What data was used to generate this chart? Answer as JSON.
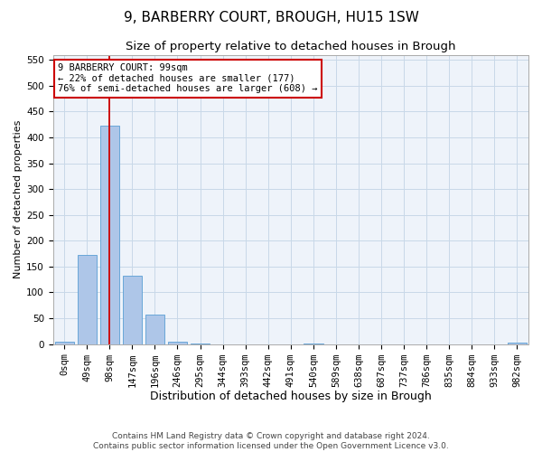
{
  "title1": "9, BARBERRY COURT, BROUGH, HU15 1SW",
  "title2": "Size of property relative to detached houses in Brough",
  "xlabel": "Distribution of detached houses by size in Brough",
  "ylabel": "Number of detached properties",
  "bar_labels": [
    "0sqm",
    "49sqm",
    "98sqm",
    "147sqm",
    "196sqm",
    "246sqm",
    "295sqm",
    "344sqm",
    "393sqm",
    "442sqm",
    "491sqm",
    "540sqm",
    "589sqm",
    "638sqm",
    "687sqm",
    "737sqm",
    "786sqm",
    "835sqm",
    "884sqm",
    "933sqm",
    "982sqm"
  ],
  "bar_values": [
    5,
    173,
    422,
    132,
    57,
    5,
    1,
    0,
    0,
    0,
    0,
    1,
    0,
    0,
    0,
    0,
    0,
    0,
    0,
    0,
    2
  ],
  "bar_color": "#aec6e8",
  "bar_edge_color": "#5a9fd4",
  "grid_color": "#c8d8e8",
  "property_line_x": 2,
  "annotation_text": "9 BARBERRY COURT: 99sqm\n← 22% of detached houses are smaller (177)\n76% of semi-detached houses are larger (608) →",
  "annotation_box_color": "#ffffff",
  "annotation_box_edge": "#cc0000",
  "vline_color": "#cc0000",
  "ylim": [
    0,
    560
  ],
  "yticks": [
    0,
    50,
    100,
    150,
    200,
    250,
    300,
    350,
    400,
    450,
    500,
    550
  ],
  "footer1": "Contains HM Land Registry data © Crown copyright and database right 2024.",
  "footer2": "Contains public sector information licensed under the Open Government Licence v3.0.",
  "title1_fontsize": 11,
  "title2_fontsize": 9.5,
  "xlabel_fontsize": 9,
  "ylabel_fontsize": 8,
  "tick_fontsize": 7.5,
  "annotation_fontsize": 7.5,
  "footer_fontsize": 6.5
}
